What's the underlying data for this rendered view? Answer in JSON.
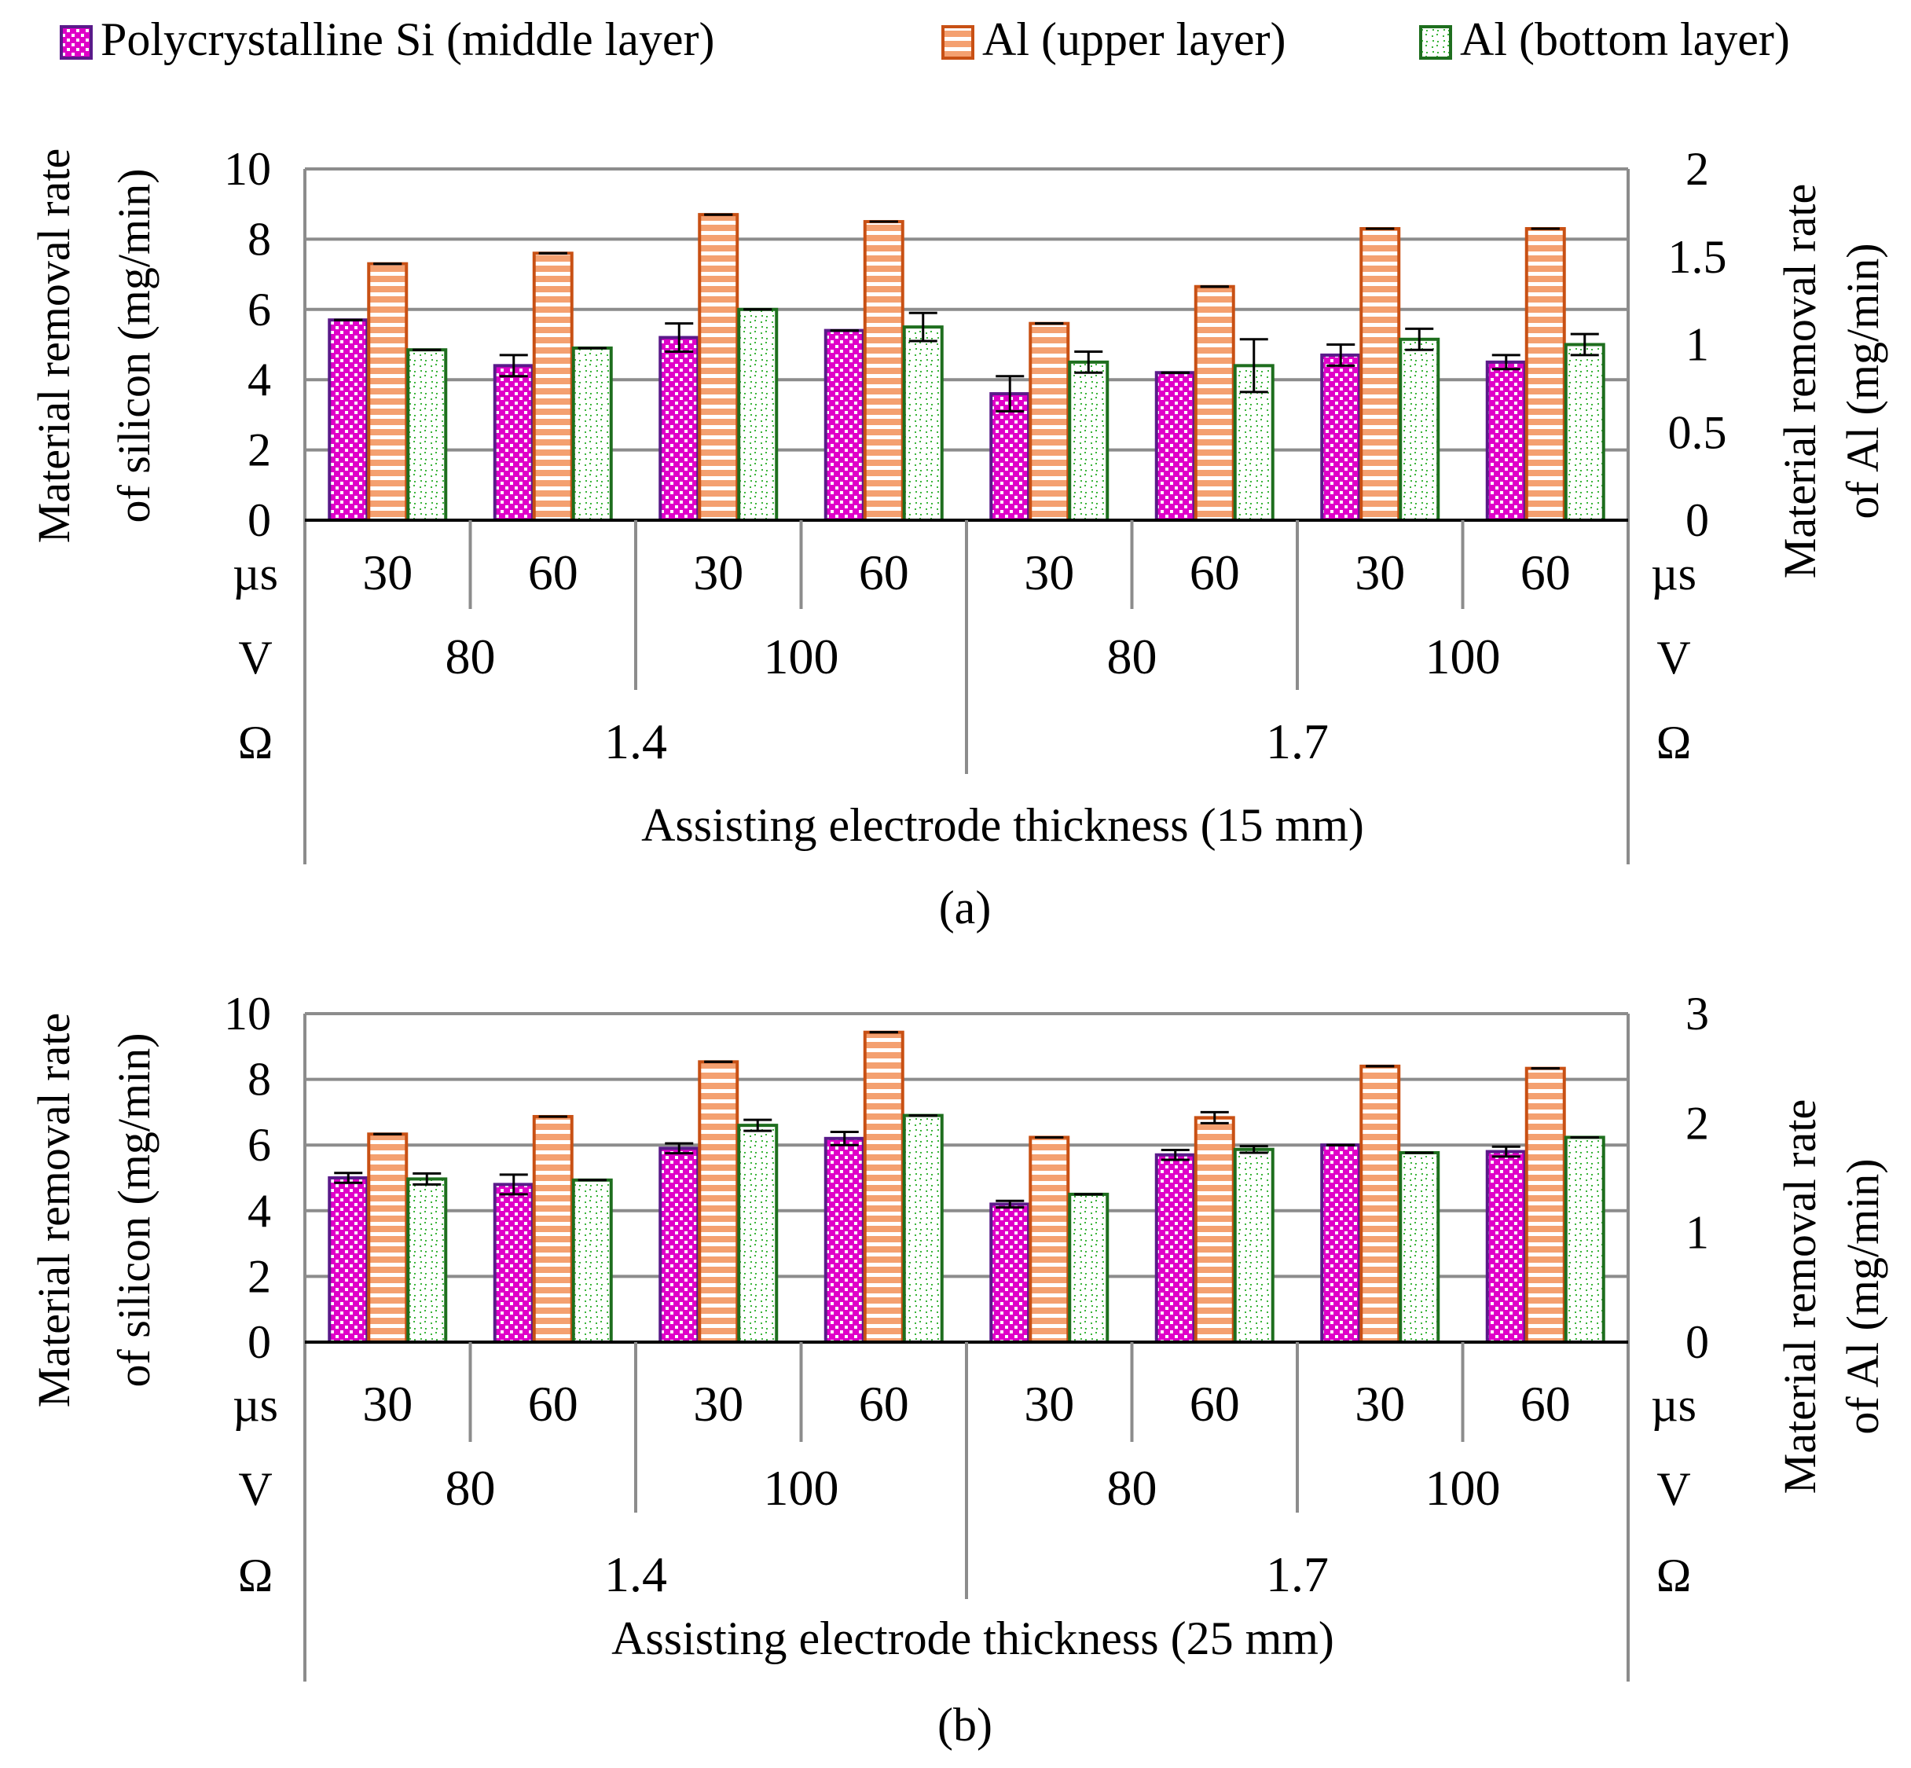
{
  "legend": [
    {
      "label": "Polycrystalline Si (middle layer)",
      "key": "si",
      "fill": "#e000c8",
      "stroke": "#5a1a8a"
    },
    {
      "label": "Al (upper layer)",
      "key": "al_upper",
      "fill": "#f4a070",
      "stroke": "#c85014"
    },
    {
      "label": "Al (bottom layer)",
      "key": "al_bottom",
      "fill": "#3cb43c",
      "stroke": "#1e6e1e"
    }
  ],
  "colors": {
    "si_fill": "#e000c8",
    "si_stroke": "#5a1a8a",
    "al_upper_fill": "#f4a070",
    "al_upper_stroke": "#c85014",
    "al_bottom_fill": "#3cb43c",
    "al_bottom_stroke": "#1e6e1e",
    "grid": "#8c8c8c"
  },
  "chart_data": [
    {
      "type": "bar",
      "panel": "(a)",
      "ylabel_left": [
        "Material removal rate",
        "of silicon (mg/min)"
      ],
      "ylabel_right": [
        "Material removal rate",
        "of Al (mg/min)"
      ],
      "ylim_left": [
        0,
        10
      ],
      "yticks_left": [
        "0",
        "2",
        "4",
        "6",
        "8",
        "10"
      ],
      "ylim_right": [
        0,
        2
      ],
      "yticks_right": [
        "0",
        "0.5",
        "1",
        "1.5",
        "2"
      ],
      "row_units": [
        "µs",
        "V",
        "Ω"
      ],
      "pulse": [
        "30",
        "60",
        "30",
        "60",
        "30",
        "60",
        "30",
        "60"
      ],
      "voltage": [
        "80",
        "100",
        "80",
        "100"
      ],
      "resistance": [
        "1.4",
        "1.7"
      ],
      "xlabel": "Assisting electrode thickness (15 mm)",
      "series": [
        {
          "name": "Polycrystalline Si (middle layer)",
          "axis": "left",
          "values": [
            5.7,
            4.4,
            5.2,
            5.4,
            3.6,
            4.2,
            4.7,
            4.5
          ],
          "errors": [
            0.0,
            0.3,
            0.4,
            0.0,
            0.5,
            0.0,
            0.3,
            0.2
          ]
        },
        {
          "name": "Al (upper layer)",
          "axis": "right",
          "values": [
            1.46,
            1.52,
            1.74,
            1.7,
            1.12,
            1.33,
            1.66,
            1.66
          ],
          "errors": [
            0.0,
            0.0,
            0.0,
            0.0,
            0.0,
            0.0,
            0.0,
            0.0
          ]
        },
        {
          "name": "Al (bottom layer)",
          "axis": "right",
          "values": [
            0.97,
            0.98,
            1.2,
            1.1,
            0.9,
            0.88,
            1.03,
            1.0
          ],
          "errors": [
            0.0,
            0.0,
            0.0,
            0.08,
            0.06,
            0.15,
            0.06,
            0.06
          ]
        }
      ]
    },
    {
      "type": "bar",
      "panel": "(b)",
      "ylabel_left": [
        "Material removal rate",
        "of silicon (mg/min)"
      ],
      "ylabel_right": [
        "Material removal rate",
        "of Al (mg/min)"
      ],
      "ylim_left": [
        0,
        10
      ],
      "yticks_left": [
        "0",
        "2",
        "4",
        "6",
        "8",
        "10"
      ],
      "ylim_right": [
        0,
        3
      ],
      "yticks_right": [
        "0",
        "1",
        "2",
        "3"
      ],
      "row_units": [
        "µs",
        "V",
        "Ω"
      ],
      "pulse": [
        "30",
        "60",
        "30",
        "60",
        "30",
        "60",
        "30",
        "60"
      ],
      "voltage": [
        "80",
        "100",
        "80",
        "100"
      ],
      "resistance": [
        "1.4",
        "1.7"
      ],
      "xlabel": "Assisting electrode thickness (25 mm)",
      "series": [
        {
          "name": "Polycrystalline Si (middle layer)",
          "axis": "left",
          "values": [
            5.0,
            4.8,
            5.9,
            6.2,
            4.2,
            5.7,
            6.0,
            5.8
          ],
          "errors": [
            0.15,
            0.3,
            0.15,
            0.2,
            0.1,
            0.15,
            0.0,
            0.15
          ]
        },
        {
          "name": "Al (upper layer)",
          "axis": "right",
          "values": [
            1.9,
            2.06,
            2.56,
            2.83,
            1.87,
            2.05,
            2.52,
            2.5
          ],
          "errors": [
            0.0,
            0.0,
            0.0,
            0.0,
            0.0,
            0.05,
            0.0,
            0.0
          ]
        },
        {
          "name": "Al (bottom layer)",
          "axis": "right",
          "values": [
            1.49,
            1.48,
            1.98,
            2.07,
            1.35,
            1.76,
            1.73,
            1.87
          ],
          "errors": [
            0.05,
            0.0,
            0.05,
            0.0,
            0.0,
            0.03,
            0.0,
            0.0
          ]
        }
      ]
    }
  ]
}
